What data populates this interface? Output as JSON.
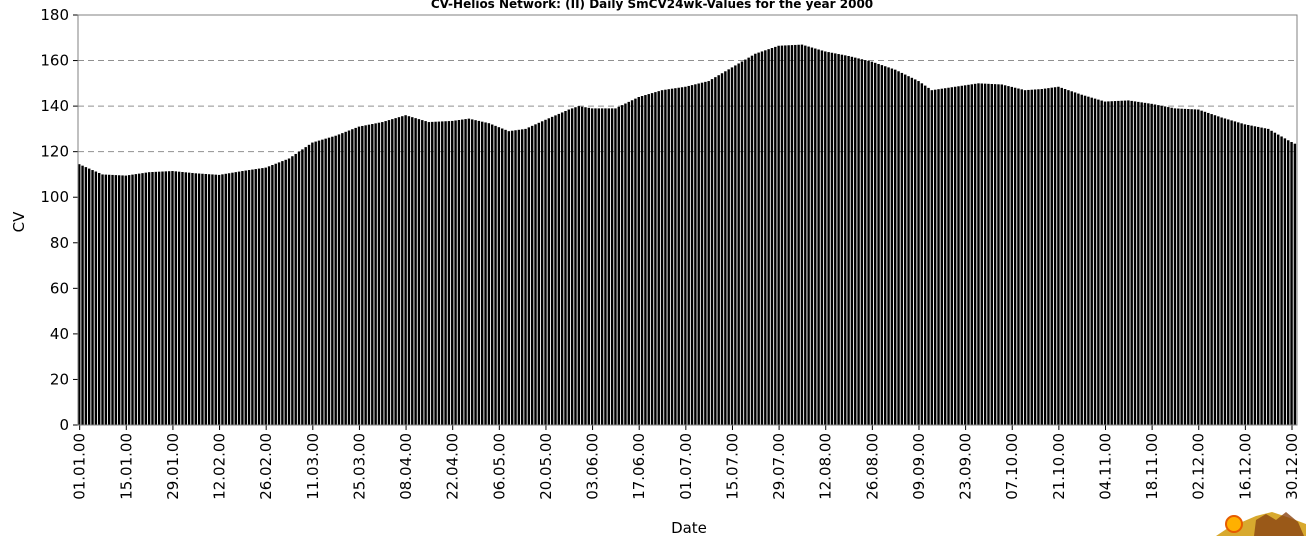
{
  "chart_data": {
    "type": "bar",
    "title": "CV-Helios Network:  (II) Daily SmCV24wk-Values for the year 2000",
    "xlabel": "Date",
    "ylabel": "CV",
    "ylim": [
      0,
      180
    ],
    "yticks": [
      0,
      20,
      40,
      60,
      80,
      100,
      120,
      140,
      160,
      180
    ],
    "grid": "horizontal dashed at 120, 140, 160",
    "bar_color": "#000000",
    "x_tick_labels": [
      "01.01.00",
      "15.01.00",
      "29.01.00",
      "12.02.00",
      "26.02.00",
      "11.03.00",
      "25.03.00",
      "08.04.00",
      "22.04.00",
      "06.05.00",
      "20.05.00",
      "03.06.00",
      "17.06.00",
      "01.07.00",
      "15.07.00",
      "29.07.00",
      "12.08.00",
      "26.08.00",
      "09.09.00",
      "23.09.00",
      "07.10.00",
      "21.10.00",
      "04.11.00",
      "18.11.00",
      "02.12.00",
      "16.12.00",
      "30.12.00"
    ],
    "x_tick_day_index": [
      0,
      14,
      28,
      42,
      56,
      70,
      84,
      98,
      112,
      126,
      140,
      154,
      168,
      182,
      196,
      210,
      224,
      238,
      252,
      266,
      280,
      294,
      308,
      322,
      336,
      350,
      364
    ],
    "anchors": [
      {
        "day": 0,
        "value": 114.5
      },
      {
        "day": 7,
        "value": 110
      },
      {
        "day": 14,
        "value": 109.5
      },
      {
        "day": 21,
        "value": 111
      },
      {
        "day": 28,
        "value": 111.5
      },
      {
        "day": 35,
        "value": 110.5
      },
      {
        "day": 42,
        "value": 109.8
      },
      {
        "day": 49,
        "value": 111.5
      },
      {
        "day": 56,
        "value": 113
      },
      {
        "day": 63,
        "value": 117
      },
      {
        "day": 70,
        "value": 124
      },
      {
        "day": 77,
        "value": 127
      },
      {
        "day": 84,
        "value": 131
      },
      {
        "day": 91,
        "value": 133
      },
      {
        "day": 98,
        "value": 136
      },
      {
        "day": 105,
        "value": 133
      },
      {
        "day": 112,
        "value": 133.5
      },
      {
        "day": 117,
        "value": 134.5
      },
      {
        "day": 123,
        "value": 132.5
      },
      {
        "day": 129,
        "value": 129
      },
      {
        "day": 134,
        "value": 130
      },
      {
        "day": 140,
        "value": 134
      },
      {
        "day": 147,
        "value": 138.5
      },
      {
        "day": 150,
        "value": 140
      },
      {
        "day": 154,
        "value": 139
      },
      {
        "day": 161,
        "value": 139
      },
      {
        "day": 168,
        "value": 144
      },
      {
        "day": 175,
        "value": 147
      },
      {
        "day": 182,
        "value": 148.5
      },
      {
        "day": 189,
        "value": 151
      },
      {
        "day": 196,
        "value": 157
      },
      {
        "day": 203,
        "value": 163
      },
      {
        "day": 210,
        "value": 166.5
      },
      {
        "day": 217,
        "value": 167
      },
      {
        "day": 224,
        "value": 164
      },
      {
        "day": 231,
        "value": 162
      },
      {
        "day": 238,
        "value": 159.5
      },
      {
        "day": 245,
        "value": 156
      },
      {
        "day": 252,
        "value": 151
      },
      {
        "day": 256,
        "value": 147
      },
      {
        "day": 263,
        "value": 148.5
      },
      {
        "day": 270,
        "value": 150
      },
      {
        "day": 277,
        "value": 149.5
      },
      {
        "day": 284,
        "value": 147
      },
      {
        "day": 289,
        "value": 147.5
      },
      {
        "day": 294,
        "value": 148.5
      },
      {
        "day": 301,
        "value": 145
      },
      {
        "day": 308,
        "value": 142
      },
      {
        "day": 315,
        "value": 142.5
      },
      {
        "day": 322,
        "value": 141
      },
      {
        "day": 329,
        "value": 139
      },
      {
        "day": 336,
        "value": 138.5
      },
      {
        "day": 343,
        "value": 135
      },
      {
        "day": 350,
        "value": 132
      },
      {
        "day": 357,
        "value": 130
      },
      {
        "day": 363,
        "value": 125
      },
      {
        "day": 365,
        "value": 123.5
      }
    ]
  }
}
